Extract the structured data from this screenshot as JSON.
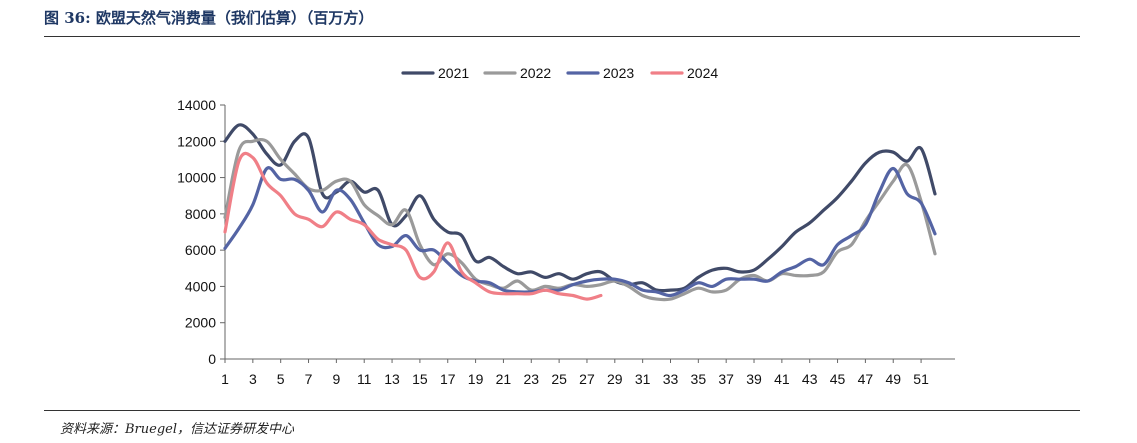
{
  "figure": {
    "title": "图 36:  欧盟天然气消费量（我们估算）（百万方）",
    "source": "资料来源：Bruegel，信达证券研发中心"
  },
  "chart_data": {
    "type": "line",
    "title": "",
    "xlabel": "",
    "ylabel": "",
    "ylim": [
      0,
      14000
    ],
    "yticks": [
      0,
      2000,
      4000,
      6000,
      8000,
      10000,
      12000,
      14000
    ],
    "xlim": [
      1,
      52
    ],
    "xticks": [
      1,
      3,
      5,
      7,
      9,
      11,
      13,
      15,
      17,
      19,
      21,
      23,
      25,
      27,
      29,
      31,
      33,
      35,
      37,
      39,
      41,
      43,
      45,
      47,
      49,
      51
    ],
    "grid": false,
    "legend": "top-center",
    "series": [
      {
        "name": "2021",
        "color": "#404a68",
        "x": [
          1,
          2,
          3,
          4,
          5,
          6,
          7,
          8,
          9,
          10,
          11,
          12,
          13,
          14,
          15,
          16,
          17,
          18,
          19,
          20,
          21,
          22,
          23,
          24,
          25,
          26,
          27,
          28,
          29,
          30,
          31,
          32,
          33,
          34,
          35,
          36,
          37,
          38,
          39,
          40,
          41,
          42,
          43,
          44,
          45,
          46,
          47,
          48,
          49,
          50,
          51,
          52
        ],
        "values": [
          12000,
          12900,
          12400,
          11300,
          10700,
          12000,
          12200,
          9100,
          9200,
          9800,
          9200,
          9300,
          7400,
          7900,
          9000,
          7700,
          7000,
          6800,
          5400,
          5600,
          5100,
          4700,
          4800,
          4500,
          4700,
          4400,
          4700,
          4800,
          4300,
          4100,
          4200,
          3800,
          3800,
          3900,
          4500,
          4900,
          5000,
          4800,
          4900,
          5500,
          6200,
          7000,
          7500,
          8200,
          8900,
          9800,
          10800,
          11400,
          11400,
          10900,
          11600,
          9100
        ]
      },
      {
        "name": "2022",
        "color": "#9a9a9a",
        "x": [
          1,
          2,
          3,
          4,
          5,
          6,
          7,
          8,
          9,
          10,
          11,
          12,
          13,
          14,
          15,
          16,
          17,
          18,
          19,
          20,
          21,
          22,
          23,
          24,
          25,
          26,
          27,
          28,
          29,
          30,
          31,
          32,
          33,
          34,
          35,
          36,
          37,
          38,
          39,
          40,
          41,
          42,
          43,
          44,
          45,
          46,
          47,
          48,
          49,
          50,
          51,
          52
        ],
        "values": [
          7800,
          11500,
          12000,
          12000,
          11000,
          10200,
          9400,
          9300,
          9800,
          9800,
          8500,
          7900,
          7400,
          8200,
          6300,
          5200,
          5800,
          5300,
          4400,
          4100,
          3900,
          4300,
          3800,
          4000,
          3900,
          4100,
          4000,
          4100,
          4300,
          4000,
          3500,
          3300,
          3300,
          3600,
          3900,
          3700,
          3800,
          4400,
          4600,
          4300,
          4700,
          4600,
          4600,
          4800,
          5900,
          6300,
          7600,
          8700,
          9800,
          10700,
          8700,
          5800
        ]
      },
      {
        "name": "2023",
        "color": "#5464a4",
        "x": [
          1,
          2,
          3,
          4,
          5,
          6,
          7,
          8,
          9,
          10,
          11,
          12,
          13,
          14,
          15,
          16,
          17,
          18,
          19,
          20,
          21,
          22,
          23,
          24,
          25,
          26,
          27,
          28,
          29,
          30,
          31,
          32,
          33,
          34,
          35,
          36,
          37,
          38,
          39,
          40,
          41,
          42,
          43,
          44,
          45,
          46,
          47,
          48,
          49,
          50,
          51,
          52
        ],
        "values": [
          6100,
          7200,
          8500,
          10500,
          9900,
          9900,
          9300,
          8100,
          9300,
          8800,
          7500,
          6300,
          6200,
          6800,
          6000,
          6000,
          5300,
          4600,
          4300,
          4200,
          3800,
          3700,
          3700,
          3800,
          3800,
          4100,
          4300,
          4400,
          4400,
          4200,
          3800,
          3700,
          3500,
          3800,
          4200,
          4000,
          4400,
          4400,
          4400,
          4300,
          4800,
          5100,
          5500,
          5200,
          6300,
          6800,
          7400,
          9200,
          10500,
          9100,
          8600,
          6900
        ]
      },
      {
        "name": "2024",
        "color": "#f07f87",
        "x": [
          1,
          2,
          3,
          4,
          5,
          6,
          7,
          8,
          9,
          10,
          11,
          12,
          13,
          14,
          15,
          16,
          17,
          18,
          19,
          20,
          21,
          22,
          23,
          24,
          25,
          26,
          27,
          28
        ],
        "values": [
          7000,
          10900,
          11100,
          9700,
          9000,
          8000,
          7700,
          7300,
          8100,
          7700,
          7400,
          6600,
          6300,
          6000,
          4500,
          4800,
          6400,
          4800,
          4200,
          3700,
          3600,
          3600,
          3600,
          3800,
          3600,
          3500,
          3300,
          3500
        ]
      }
    ]
  }
}
